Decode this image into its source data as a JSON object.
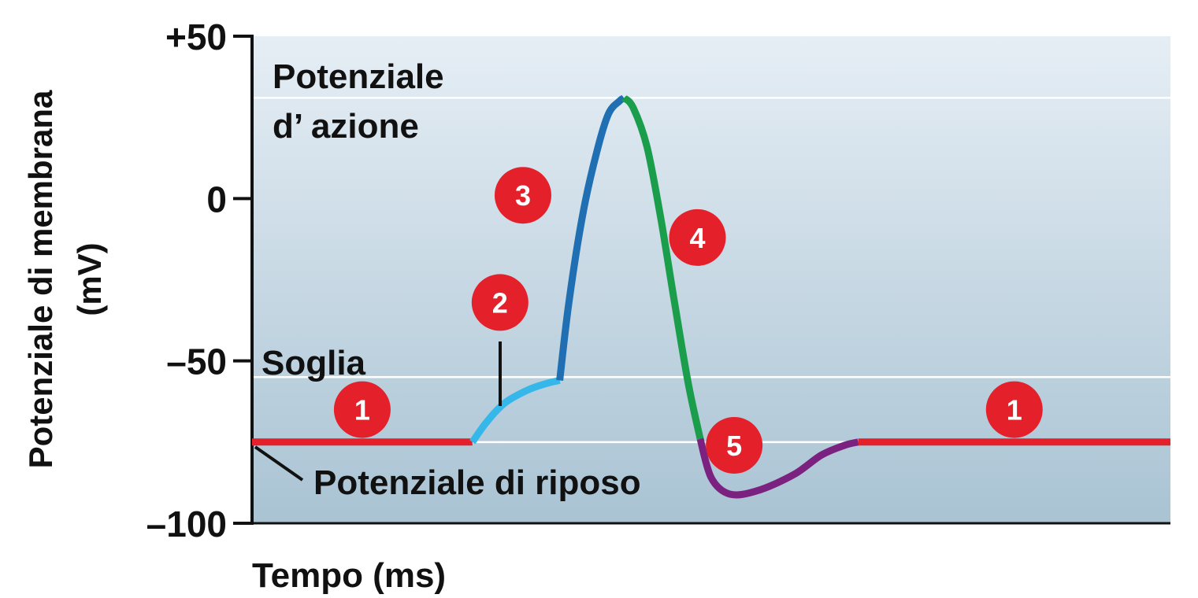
{
  "chart_data": {
    "type": "line",
    "xlabel": "Tempo (ms)",
    "ylabel_line1": "Potenziale di membrana",
    "ylabel_line2": "(mV)",
    "ylim": [
      -100,
      50
    ],
    "yticks": [
      {
        "value": 50,
        "label": "+50"
      },
      {
        "value": 0,
        "label": "0"
      },
      {
        "value": -50,
        "label": "–50"
      },
      {
        "value": -100,
        "label": "–100"
      }
    ],
    "grid": false,
    "reference_levels": [
      {
        "name": "peak",
        "value": 31
      },
      {
        "name": "threshold",
        "value": -55
      },
      {
        "name": "resting",
        "value": -75
      }
    ],
    "annotations": {
      "title_line1": "Potenziale",
      "title_line2": "d’ azione",
      "threshold": "Soglia",
      "resting": "Potenziale di riposo"
    },
    "series": [
      {
        "phase": "1",
        "color": "#e4212b",
        "points": [
          [
            0,
            -75
          ],
          [
            2.4,
            -75
          ]
        ]
      },
      {
        "phase": "2",
        "color": "#35b7ea",
        "points": [
          [
            2.4,
            -75
          ],
          [
            2.55,
            -69
          ],
          [
            2.75,
            -63
          ],
          [
            3.0,
            -59
          ],
          [
            3.2,
            -57
          ],
          [
            3.35,
            -56
          ]
        ]
      },
      {
        "phase": "3",
        "color": "#1f6fb2",
        "points": [
          [
            3.35,
            -56
          ],
          [
            3.45,
            -32
          ],
          [
            3.6,
            -5
          ],
          [
            3.75,
            14
          ],
          [
            3.88,
            26
          ],
          [
            4.0,
            30
          ],
          [
            4.05,
            31
          ]
        ]
      },
      {
        "phase": "4",
        "color": "#1b9e4b",
        "points": [
          [
            4.05,
            31
          ],
          [
            4.15,
            28
          ],
          [
            4.3,
            16
          ],
          [
            4.45,
            -6
          ],
          [
            4.6,
            -32
          ],
          [
            4.75,
            -57
          ],
          [
            4.88,
            -74
          ]
        ]
      },
      {
        "phase": "5",
        "color": "#7b2180",
        "points": [
          [
            4.88,
            -74
          ],
          [
            5.0,
            -86
          ],
          [
            5.2,
            -91
          ],
          [
            5.5,
            -90
          ],
          [
            5.9,
            -85
          ],
          [
            6.2,
            -79
          ],
          [
            6.45,
            -76
          ],
          [
            6.6,
            -75
          ]
        ]
      },
      {
        "phase": "1",
        "color": "#e4212b",
        "points": [
          [
            6.6,
            -75
          ],
          [
            10.0,
            -75
          ]
        ]
      }
    ],
    "phase_labels": [
      {
        "label": "1",
        "x": 1.2,
        "y": -65
      },
      {
        "label": "2",
        "x": 2.7,
        "y": -32
      },
      {
        "label": "3",
        "x": 2.95,
        "y": 1
      },
      {
        "label": "4",
        "x": 4.85,
        "y": -12
      },
      {
        "label": "5",
        "x": 5.25,
        "y": -76
      },
      {
        "label": "1",
        "x": 8.3,
        "y": -65
      }
    ],
    "colors": {
      "badge": "#e4212b",
      "axis": "#111111",
      "reference_line": "#ffffff",
      "plot_bg_top": "#e6eef5",
      "plot_bg_bottom": "#a9c3d3"
    }
  }
}
